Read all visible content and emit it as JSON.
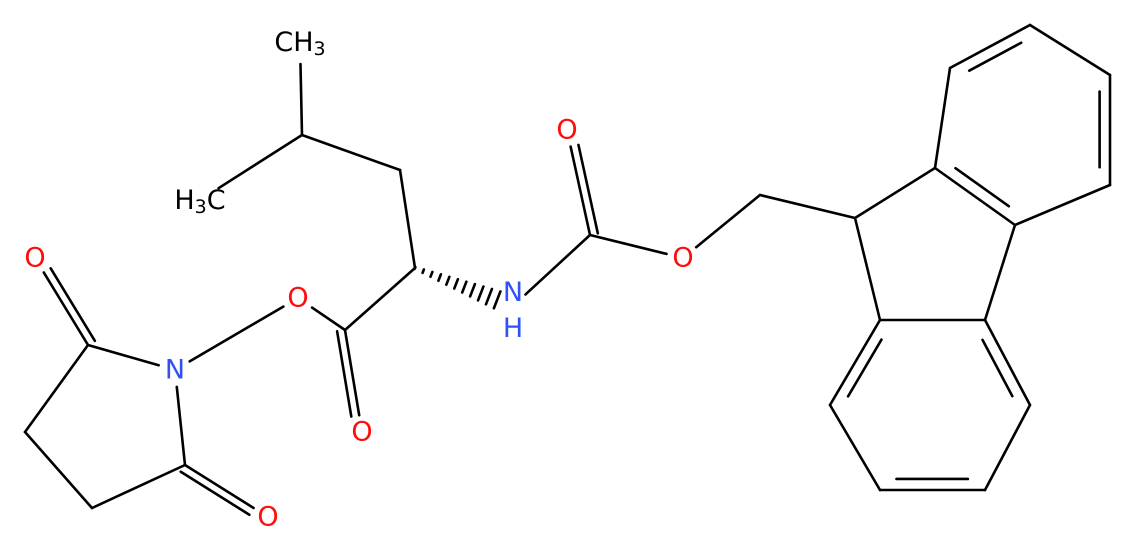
{
  "labels": [
    "CH3",
    "H3C",
    "O",
    "O",
    "N",
    "O",
    "O",
    "NH",
    "O",
    "O"
  ]
}
